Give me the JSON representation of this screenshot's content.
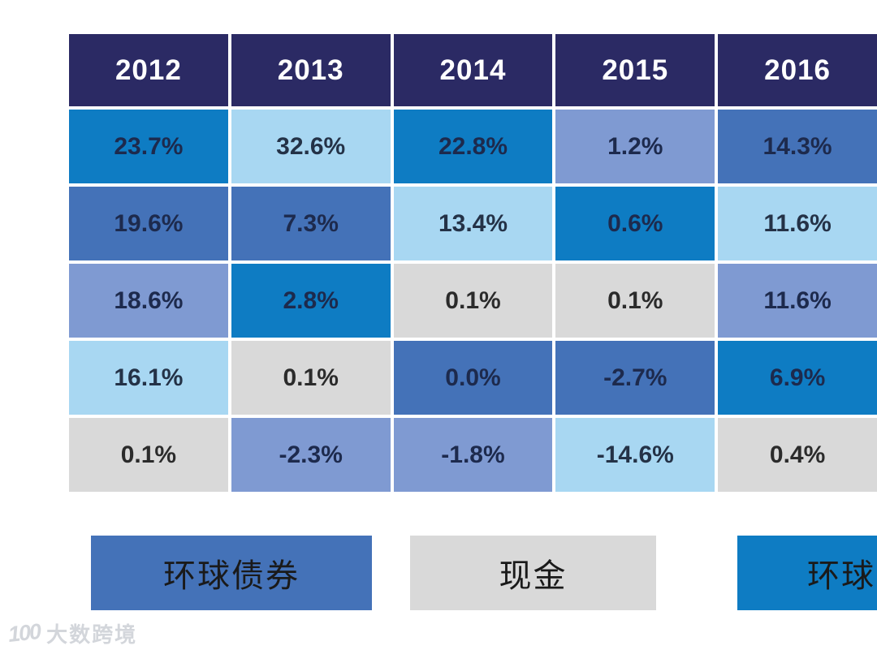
{
  "palette": {
    "header": "#2b2a64",
    "medium": "#0e7cc3",
    "royal": "#4472b8",
    "peri": "#7f9ad2",
    "sky": "#a8d7f2",
    "gray": "#d9d9d9"
  },
  "palette_text": {
    "default": "#1d2a4d",
    "gray": "#2b2b2b",
    "sky": "#243247"
  },
  "table": {
    "header_k": "header",
    "years": [
      "2012",
      "2013",
      "2014",
      "2015",
      "2016"
    ],
    "rows": [
      {
        "cells": [
          {
            "v": "23.7%",
            "k": "medium"
          },
          {
            "v": "32.6%",
            "k": "sky"
          },
          {
            "v": "22.8%",
            "k": "medium"
          },
          {
            "v": "1.2%",
            "k": "peri"
          },
          {
            "v": "14.3%",
            "k": "royal"
          }
        ]
      },
      {
        "cells": [
          {
            "v": "19.6%",
            "k": "royal"
          },
          {
            "v": "7.3%",
            "k": "royal"
          },
          {
            "v": "13.4%",
            "k": "sky"
          },
          {
            "v": "0.6%",
            "k": "medium"
          },
          {
            "v": "11.6%",
            "k": "sky"
          }
        ]
      },
      {
        "cells": [
          {
            "v": "18.6%",
            "k": "peri"
          },
          {
            "v": "2.8%",
            "k": "medium"
          },
          {
            "v": "0.1%",
            "k": "gray"
          },
          {
            "v": "0.1%",
            "k": "gray"
          },
          {
            "v": "11.6%",
            "k": "peri"
          }
        ]
      },
      {
        "cells": [
          {
            "v": "16.1%",
            "k": "sky"
          },
          {
            "v": "0.1%",
            "k": "gray"
          },
          {
            "v": "0.0%",
            "k": "royal"
          },
          {
            "v": "-2.7%",
            "k": "royal"
          },
          {
            "v": "6.9%",
            "k": "medium"
          }
        ]
      },
      {
        "cells": [
          {
            "v": "0.1%",
            "k": "gray"
          },
          {
            "v": "-2.3%",
            "k": "peri"
          },
          {
            "v": "-1.8%",
            "k": "peri"
          },
          {
            "v": "-14.6%",
            "k": "sky"
          },
          {
            "v": "0.4%",
            "k": "gray"
          }
        ]
      }
    ]
  },
  "legend": [
    {
      "label": "环球债券",
      "k": "royal"
    },
    {
      "label": "现金",
      "k": "gray"
    },
    {
      "label": "环球",
      "k": "medium",
      "clipped_at_right_edge": true
    }
  ],
  "watermark": {
    "logo": "100",
    "text": "大数跨境"
  },
  "chart_data": {
    "type": "heatmap",
    "title": "",
    "columns": [
      "2012",
      "2013",
      "2014",
      "2015",
      "2016"
    ],
    "rows_pct": [
      [
        23.7,
        32.6,
        22.8,
        1.2,
        14.3
      ],
      [
        19.6,
        7.3,
        13.4,
        0.6,
        11.6
      ],
      [
        18.6,
        2.8,
        0.1,
        0.1,
        11.6
      ],
      [
        16.1,
        0.1,
        0.0,
        -2.7,
        6.9
      ],
      [
        0.1,
        -2.3,
        -1.8,
        -14.6,
        0.4
      ]
    ],
    "cell_color_keys": [
      [
        "medium",
        "sky",
        "medium",
        "peri",
        "royal"
      ],
      [
        "royal",
        "royal",
        "sky",
        "medium",
        "sky"
      ],
      [
        "peri",
        "medium",
        "gray",
        "gray",
        "peri"
      ],
      [
        "sky",
        "gray",
        "royal",
        "royal",
        "medium"
      ],
      [
        "gray",
        "peri",
        "peri",
        "sky",
        "gray"
      ]
    ],
    "legend_entries": [
      "环球债券",
      "现金",
      "环球"
    ],
    "notes": "Rows are ranked returns per year; cell color encodes asset class. Third legend label and fifth column are clipped by the right image edge."
  }
}
